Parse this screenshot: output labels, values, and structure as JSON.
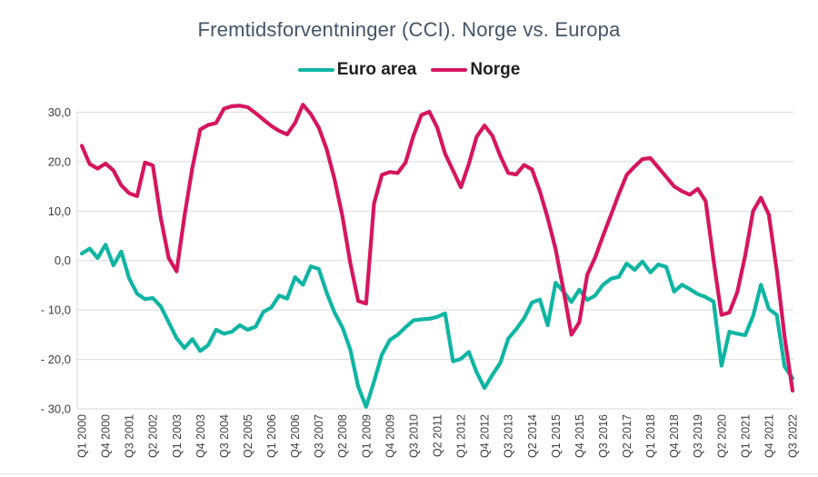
{
  "title": "Fremtidsforventninger (CCI). Norge vs. Europa",
  "legend": {
    "items": [
      {
        "label": "Euro area",
        "color": "#0fb5a3"
      },
      {
        "label": "Norge",
        "color": "#d6155f"
      }
    ]
  },
  "colors": {
    "title": "#44546a",
    "axis_text": "#404040",
    "gridline": "#d9d9d9",
    "background": "#ffffff"
  },
  "chart_data": {
    "type": "line",
    "title": "Fremtidsforventninger (CCI). Norge vs. Europa",
    "xlabel": "",
    "ylabel": "",
    "x_start": "Q1 2000",
    "x_end": "Q3 2022",
    "x_frequency": "quarterly",
    "x_points": 91,
    "x_tick_every": 3,
    "x_tick_labels": [
      "Q1 2000",
      "Q4 2000",
      "Q3 2001",
      "Q2 2002",
      "Q1 2003",
      "Q4 2003",
      "Q3 2004",
      "Q2 2005",
      "Q1 2006",
      "Q4 2006",
      "Q3 2007",
      "Q2 2008",
      "Q1 2009",
      "Q4 2009",
      "Q3 2010",
      "Q2 2011",
      "Q1 2012",
      "Q4 2012",
      "Q3 2013",
      "Q2 2014",
      "Q1 2015",
      "Q4 2015",
      "Q3 2016",
      "Q2 2017",
      "Q1 2018",
      "Q4 2018",
      "Q3 2019",
      "Q2 2020",
      "Q1 2021",
      "Q4 2021",
      "Q3 2022"
    ],
    "y_ticks": [
      30,
      20,
      10,
      0,
      -10,
      -20,
      -30
    ],
    "y_tick_labels": [
      "30,0",
      "20,0",
      "10,0",
      "0,0",
      "- 10,0",
      "- 20,0",
      "- 30,0"
    ],
    "ylim": [
      -30,
      32
    ],
    "grid": "horizontal",
    "legend_position": "top-center",
    "series": [
      {
        "name": "Euro area",
        "color": "#0fb5a3",
        "values": [
          1.4,
          2.4,
          0.5,
          3.2,
          -1.0,
          1.8,
          -3.6,
          -6.7,
          -7.8,
          -7.6,
          -9.3,
          -12.5,
          -15.7,
          -17.7,
          -15.9,
          -18.3,
          -17.1,
          -14.0,
          -14.8,
          -14.4,
          -13.1,
          -14.0,
          -13.4,
          -10.4,
          -9.5,
          -7.1,
          -7.7,
          -3.4,
          -4.9,
          -1.2,
          -1.7,
          -6.5,
          -10.5,
          -13.5,
          -18.0,
          -25.5,
          -29.6,
          -24.5,
          -19.0,
          -16.1,
          -15.0,
          -13.5,
          -12.1,
          -11.9,
          -11.8,
          -11.4,
          -10.7,
          -20.4,
          -19.9,
          -18.5,
          -22.6,
          -25.8,
          -23.1,
          -20.7,
          -15.8,
          -13.9,
          -11.7,
          -8.5,
          -7.9,
          -13.1,
          -4.5,
          -6.3,
          -8.4,
          -5.9,
          -8.0,
          -7.1,
          -4.9,
          -3.7,
          -3.3,
          -0.6,
          -1.9,
          -0.2,
          -2.4,
          -0.8,
          -1.3,
          -6.3,
          -4.9,
          -5.8,
          -6.8,
          -7.4,
          -8.3,
          -21.3,
          -14.4,
          -14.8,
          -15.1,
          -11.2,
          -4.9,
          -9.8,
          -11.0,
          -21.5,
          -23.8
        ]
      },
      {
        "name": "Norge",
        "color": "#d6155f",
        "values": [
          23.2,
          19.5,
          18.6,
          19.6,
          18.2,
          15.2,
          13.6,
          13.0,
          19.8,
          19.2,
          8.6,
          0.5,
          -2.2,
          9.0,
          18.7,
          26.5,
          27.4,
          27.8,
          30.7,
          31.2,
          31.3,
          31.0,
          29.8,
          28.5,
          27.2,
          26.2,
          25.5,
          27.8,
          31.5,
          29.6,
          26.9,
          22.5,
          16.5,
          9.0,
          -0.5,
          -8.2,
          -8.7,
          11.5,
          17.3,
          17.9,
          17.7,
          19.8,
          25.2,
          29.4,
          30.1,
          26.9,
          21.6,
          18.2,
          14.8,
          19.5,
          25.0,
          27.3,
          25.2,
          21.1,
          17.7,
          17.4,
          19.3,
          18.4,
          14.0,
          8.6,
          2.3,
          -6.0,
          -15.0,
          -12.5,
          -2.9,
          0.6,
          5.0,
          9.2,
          13.4,
          17.3,
          19.0,
          20.5,
          20.7,
          18.8,
          16.9,
          15.0,
          14.0,
          13.3,
          14.5,
          12.0,
          0.0,
          -11.0,
          -10.5,
          -6.4,
          1.0,
          10.0,
          12.7,
          9.3,
          -2.0,
          -15.5,
          -26.3
        ]
      }
    ]
  }
}
